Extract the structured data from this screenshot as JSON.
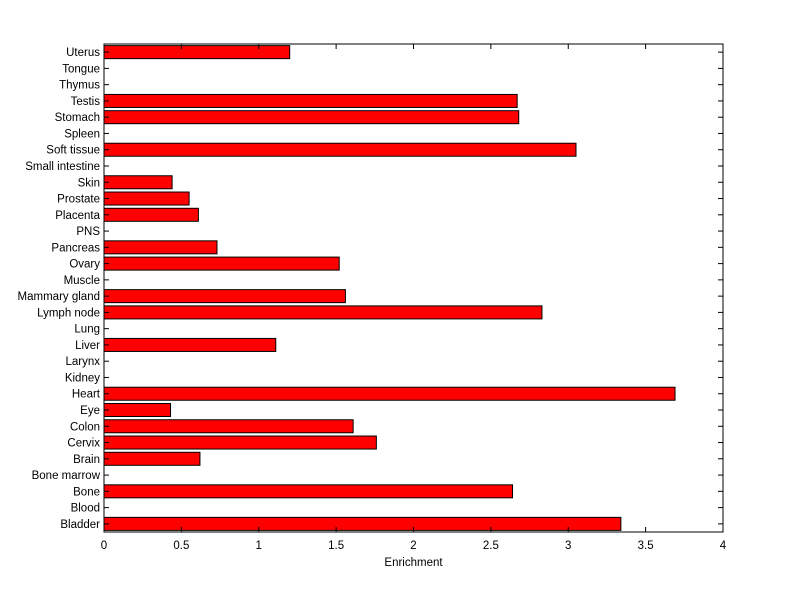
{
  "chart_data": {
    "type": "bar",
    "orientation": "horizontal",
    "title": "",
    "xlabel": "Enrichment",
    "ylabel": "",
    "xlim": [
      0,
      4
    ],
    "xticks": [
      "0",
      "0.5",
      "1",
      "1.5",
      "2",
      "2.5",
      "3",
      "3.5",
      "4"
    ],
    "grid": false,
    "legend": "none",
    "bar_color": "#ff0000",
    "edge_color": "#000000",
    "categories": [
      "Bladder",
      "Blood",
      "Bone",
      "Bone marrow",
      "Brain",
      "Cervix",
      "Colon",
      "Eye",
      "Heart",
      "Kidney",
      "Larynx",
      "Liver",
      "Lung",
      "Lymph node",
      "Mammary gland",
      "Muscle",
      "Ovary",
      "Pancreas",
      "PNS",
      "Placenta",
      "Prostate",
      "Skin",
      "Small intestine",
      "Soft tissue",
      "Spleen",
      "Stomach",
      "Testis",
      "Thymus",
      "Tongue",
      "Uterus"
    ],
    "values": [
      3.34,
      0,
      2.64,
      0,
      0.62,
      1.76,
      1.61,
      0.43,
      3.69,
      0,
      0,
      1.11,
      0,
      2.83,
      1.56,
      0,
      1.52,
      0.73,
      0,
      0.61,
      0.55,
      0.44,
      0,
      3.05,
      0,
      2.68,
      2.67,
      0,
      0,
      1.2
    ]
  }
}
